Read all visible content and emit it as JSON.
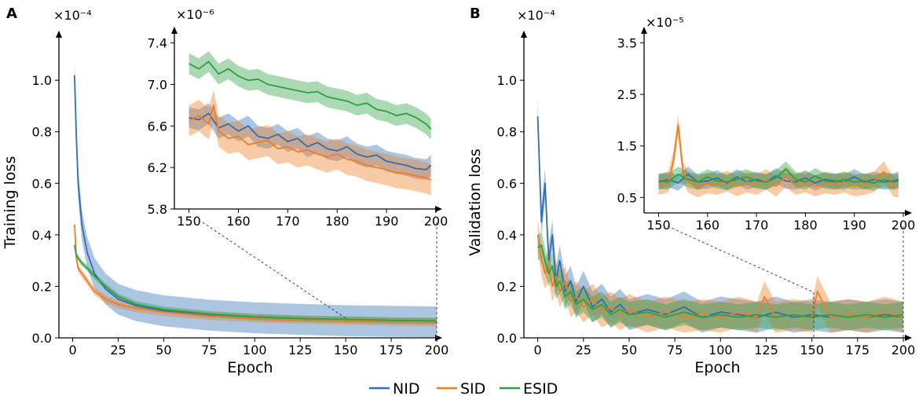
{
  "colors": {
    "NID": "#2f6fb2",
    "SID": "#ee7d24",
    "ESID": "#2ea043"
  },
  "legend": {
    "items": [
      "NID",
      "SID",
      "ESID"
    ]
  },
  "chart_data": [
    {
      "id": "A-main",
      "panel_letter": "A",
      "type": "line",
      "xlabel": "Epoch",
      "ylabel": "Training loss",
      "y_multiplier": "×10⁻⁴",
      "xlim": [
        0,
        200
      ],
      "ylim": [
        0,
        1.15
      ],
      "xticks": [
        0,
        25,
        50,
        75,
        100,
        125,
        150,
        175,
        200
      ],
      "yticks": [
        0.0,
        0.2,
        0.4,
        0.6,
        0.8,
        1.0
      ],
      "ytick_labels": [
        "0.0",
        "0.2",
        "0.4",
        "0.6",
        "0.8",
        "1.0"
      ],
      "series": [
        {
          "name": "NID",
          "x": [
            1,
            2,
            3,
            5,
            8,
            12,
            18,
            25,
            35,
            50,
            75,
            100,
            125,
            150,
            175,
            200
          ],
          "values": [
            1.02,
            0.78,
            0.6,
            0.44,
            0.33,
            0.25,
            0.19,
            0.15,
            0.125,
            0.105,
            0.088,
            0.078,
            0.072,
            0.0665,
            0.064,
            0.062
          ],
          "band": 0.06
        },
        {
          "name": "SID",
          "x": [
            1,
            2,
            3,
            5,
            8,
            12,
            18,
            25,
            35,
            50,
            75,
            100,
            125,
            150,
            175,
            200
          ],
          "values": [
            0.44,
            0.31,
            0.27,
            0.25,
            0.22,
            0.18,
            0.15,
            0.13,
            0.115,
            0.1,
            0.085,
            0.076,
            0.07,
            0.0665,
            0.063,
            0.061
          ],
          "band": 0.015
        },
        {
          "name": "ESID",
          "x": [
            1,
            2,
            3,
            5,
            8,
            12,
            18,
            25,
            35,
            50,
            75,
            100,
            125,
            150,
            175,
            200
          ],
          "values": [
            0.36,
            0.32,
            0.31,
            0.29,
            0.27,
            0.24,
            0.2,
            0.16,
            0.13,
            0.11,
            0.092,
            0.081,
            0.075,
            0.072,
            0.068,
            0.066
          ],
          "band": 0.012
        }
      ]
    },
    {
      "id": "A-inset",
      "type": "line",
      "y_multiplier": "×10⁻⁶",
      "xlim": [
        148,
        200
      ],
      "ylim": [
        5.8,
        7.45
      ],
      "xticks": [
        150,
        160,
        170,
        180,
        190,
        200
      ],
      "yticks": [
        5.8,
        6.2,
        6.6,
        7.0,
        7.4
      ],
      "ytick_labels": [
        "5.8",
        "6.2",
        "6.6",
        "7.0",
        "7.4"
      ],
      "series": [
        {
          "name": "NID",
          "x": [
            150,
            152,
            154,
            156,
            158,
            160,
            162,
            164,
            166,
            168,
            170,
            172,
            174,
            176,
            178,
            180,
            182,
            184,
            186,
            188,
            190,
            192,
            194,
            196,
            198,
            199
          ],
          "values": [
            6.68,
            6.66,
            6.72,
            6.58,
            6.62,
            6.55,
            6.6,
            6.5,
            6.48,
            6.52,
            6.45,
            6.48,
            6.4,
            6.44,
            6.38,
            6.36,
            6.4,
            6.33,
            6.3,
            6.32,
            6.26,
            6.24,
            6.22,
            6.19,
            6.18,
            6.22
          ],
          "band": 0.1
        },
        {
          "name": "SID",
          "x": [
            150,
            152,
            154,
            155,
            156,
            158,
            160,
            162,
            164,
            166,
            168,
            170,
            172,
            174,
            176,
            178,
            180,
            182,
            184,
            186,
            188,
            190,
            192,
            194,
            196,
            198,
            199
          ],
          "values": [
            6.65,
            6.7,
            6.62,
            6.8,
            6.55,
            6.48,
            6.5,
            6.42,
            6.44,
            6.46,
            6.38,
            6.4,
            6.35,
            6.37,
            6.33,
            6.3,
            6.33,
            6.28,
            6.26,
            6.22,
            6.2,
            6.18,
            6.15,
            6.14,
            6.12,
            6.1,
            6.08
          ],
          "band": 0.15
        },
        {
          "name": "ESID",
          "x": [
            150,
            152,
            154,
            156,
            158,
            160,
            162,
            164,
            166,
            168,
            170,
            172,
            174,
            176,
            178,
            180,
            182,
            184,
            186,
            188,
            190,
            192,
            194,
            196,
            198,
            199
          ],
          "values": [
            7.2,
            7.15,
            7.22,
            7.1,
            7.15,
            7.08,
            7.04,
            7.05,
            7.0,
            6.98,
            6.96,
            6.94,
            6.92,
            6.93,
            6.88,
            6.86,
            6.84,
            6.8,
            6.82,
            6.76,
            6.74,
            6.7,
            6.72,
            6.68,
            6.62,
            6.57
          ],
          "band": 0.1
        }
      ]
    },
    {
      "id": "B-main",
      "panel_letter": "B",
      "type": "line",
      "xlabel": "Epoch",
      "ylabel": "Validation loss",
      "y_multiplier": "×10⁻⁴",
      "xlim": [
        0,
        200
      ],
      "ylim": [
        0,
        1.15
      ],
      "xticks": [
        0,
        25,
        50,
        75,
        100,
        125,
        150,
        175,
        200
      ],
      "yticks": [
        0.0,
        0.2,
        0.4,
        0.6,
        0.8,
        1.0
      ],
      "ytick_labels": [
        "0.0",
        "0.2",
        "0.4",
        "0.6",
        "0.8",
        "1.0"
      ],
      "series": [
        {
          "name": "NID",
          "x": [
            0,
            2,
            4,
            6,
            8,
            10,
            12,
            15,
            18,
            21,
            25,
            30,
            35,
            40,
            45,
            50,
            60,
            70,
            80,
            90,
            100,
            110,
            120,
            130,
            140,
            150,
            160,
            170,
            180,
            190,
            200
          ],
          "values": [
            0.86,
            0.45,
            0.6,
            0.3,
            0.4,
            0.22,
            0.3,
            0.18,
            0.22,
            0.14,
            0.2,
            0.12,
            0.15,
            0.1,
            0.13,
            0.09,
            0.11,
            0.09,
            0.12,
            0.08,
            0.1,
            0.09,
            0.08,
            0.1,
            0.08,
            0.09,
            0.08,
            0.09,
            0.08,
            0.09,
            0.08
          ],
          "band": 0.06
        },
        {
          "name": "SID",
          "x": [
            0,
            2,
            4,
            6,
            8,
            10,
            12,
            15,
            18,
            21,
            25,
            30,
            35,
            40,
            45,
            50,
            60,
            70,
            80,
            90,
            100,
            110,
            120,
            124,
            130,
            140,
            150,
            153,
            160,
            170,
            180,
            190,
            200
          ],
          "values": [
            0.4,
            0.3,
            0.25,
            0.28,
            0.2,
            0.24,
            0.18,
            0.22,
            0.14,
            0.16,
            0.12,
            0.15,
            0.1,
            0.12,
            0.09,
            0.11,
            0.08,
            0.1,
            0.08,
            0.09,
            0.08,
            0.1,
            0.08,
            0.16,
            0.08,
            0.09,
            0.08,
            0.18,
            0.08,
            0.09,
            0.08,
            0.1,
            0.08
          ],
          "band": 0.06
        },
        {
          "name": "ESID",
          "x": [
            0,
            2,
            4,
            6,
            8,
            10,
            12,
            15,
            18,
            21,
            25,
            30,
            35,
            40,
            45,
            50,
            60,
            70,
            80,
            90,
            100,
            110,
            120,
            130,
            140,
            150,
            160,
            170,
            180,
            190,
            200
          ],
          "values": [
            0.35,
            0.36,
            0.3,
            0.25,
            0.28,
            0.2,
            0.22,
            0.16,
            0.18,
            0.13,
            0.15,
            0.11,
            0.13,
            0.09,
            0.11,
            0.09,
            0.1,
            0.08,
            0.1,
            0.08,
            0.09,
            0.08,
            0.09,
            0.08,
            0.09,
            0.08,
            0.09,
            0.08,
            0.09,
            0.08,
            0.09
          ],
          "band": 0.05
        }
      ]
    },
    {
      "id": "B-inset",
      "type": "line",
      "y_multiplier": "×10⁻⁵",
      "xlim": [
        148,
        200
      ],
      "ylim": [
        0.2,
        3.6
      ],
      "xticks": [
        150,
        160,
        170,
        180,
        190,
        200
      ],
      "yticks": [
        0.5,
        1.5,
        2.5,
        3.5
      ],
      "ytick_labels": [
        "0.5",
        "1.5",
        "2.5",
        "3.5"
      ],
      "series": [
        {
          "name": "NID",
          "x": [
            150,
            152,
            154,
            156,
            158,
            160,
            162,
            164,
            166,
            168,
            170,
            172,
            174,
            176,
            178,
            180,
            182,
            184,
            186,
            188,
            190,
            192,
            194,
            196,
            198,
            199
          ],
          "values": [
            0.8,
            0.85,
            0.78,
            0.95,
            0.8,
            0.82,
            0.88,
            0.78,
            0.9,
            0.8,
            0.85,
            0.8,
            0.92,
            0.82,
            0.8,
            0.88,
            0.78,
            0.85,
            0.82,
            0.8,
            0.9,
            0.8,
            0.85,
            0.8,
            0.82,
            0.85
          ],
          "band": 0.15
        },
        {
          "name": "SID",
          "x": [
            150,
            152,
            153,
            154,
            155,
            156,
            158,
            160,
            162,
            164,
            166,
            168,
            170,
            172,
            174,
            176,
            178,
            180,
            182,
            184,
            186,
            188,
            190,
            192,
            194,
            196,
            197,
            198,
            199
          ],
          "values": [
            0.75,
            0.8,
            1.2,
            1.9,
            1.0,
            0.8,
            0.7,
            0.78,
            0.75,
            0.82,
            0.72,
            0.8,
            0.75,
            0.85,
            0.72,
            0.9,
            0.75,
            0.8,
            0.72,
            0.78,
            0.75,
            0.8,
            0.72,
            0.75,
            0.8,
            1.0,
            0.85,
            0.72,
            0.7
          ],
          "band": 0.2
        },
        {
          "name": "ESID",
          "x": [
            150,
            152,
            154,
            156,
            158,
            160,
            162,
            164,
            166,
            168,
            170,
            172,
            174,
            176,
            178,
            180,
            182,
            184,
            186,
            188,
            190,
            192,
            194,
            196,
            198,
            199
          ],
          "values": [
            0.82,
            0.8,
            0.95,
            0.85,
            0.8,
            0.9,
            0.82,
            0.8,
            0.85,
            0.9,
            0.82,
            0.8,
            0.88,
            1.05,
            0.85,
            0.8,
            0.92,
            0.82,
            0.8,
            0.85,
            0.8,
            0.82,
            0.78,
            0.85,
            0.8,
            0.82
          ],
          "band": 0.15
        }
      ]
    }
  ]
}
